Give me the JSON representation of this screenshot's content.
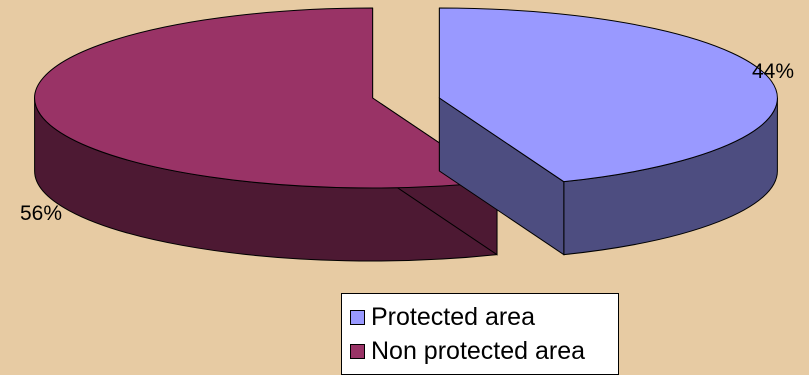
{
  "chart_data": {
    "type": "pie",
    "three_d": true,
    "exploded": true,
    "title": "",
    "slices": [
      {
        "label": "Protected area",
        "value": 44,
        "data_label": "44%",
        "color": "#9999ff",
        "side_color": "#4d4d80"
      },
      {
        "label": "Non protected area",
        "value": 56,
        "data_label": "56%",
        "color": "#993366",
        "side_color": "#4d1933"
      }
    ],
    "legend_position": "bottom-right"
  },
  "background_color": "#e7cba3"
}
